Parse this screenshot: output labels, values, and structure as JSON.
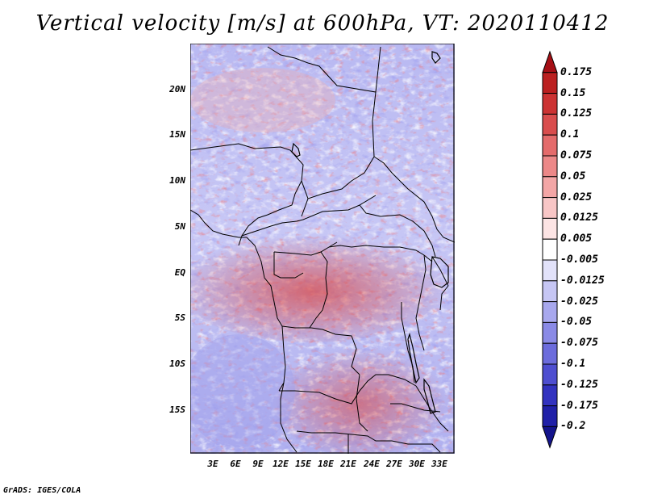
{
  "title": "Vertical velocity [m/s] at 600hPa, VT: 2020110412",
  "credit": "GrADS: IGES/COLA",
  "axes": {
    "y_ticks": [
      "20N",
      "15N",
      "10N",
      "5N",
      "EQ",
      "5S",
      "10S",
      "15S"
    ],
    "x_ticks": [
      "3E",
      "6E",
      "9E",
      "12E",
      "15E",
      "18E",
      "21E",
      "24E",
      "27E",
      "30E",
      "33E"
    ]
  },
  "colorbar": {
    "labels": [
      "0.175",
      "0.15",
      "0.125",
      "0.1",
      "0.075",
      "0.05",
      "0.025",
      "0.0125",
      "0.005",
      "-0.005",
      "-0.0125",
      "-0.025",
      "-0.05",
      "-0.075",
      "-0.1",
      "-0.125",
      "-0.175",
      "-0.2"
    ],
    "colors": [
      "#a50f15",
      "#bb2020",
      "#cc3333",
      "#d94d4d",
      "#e46b6b",
      "#ec8888",
      "#f3a6a6",
      "#f8c6c6",
      "#fce4e4",
      "#ffffff",
      "#e2e2fa",
      "#c6c6f4",
      "#a8a8ee",
      "#8a8ae6",
      "#6c6cdc",
      "#4e4ed0",
      "#3232bf",
      "#2020a8",
      "#14148c"
    ],
    "units": "m/s"
  },
  "map": {
    "region": "Central Africa",
    "lon_range": [
      0,
      35
    ],
    "lat_range": [
      -20,
      25
    ],
    "pressure_level": "600hPa",
    "valid_time": "2020110412"
  }
}
